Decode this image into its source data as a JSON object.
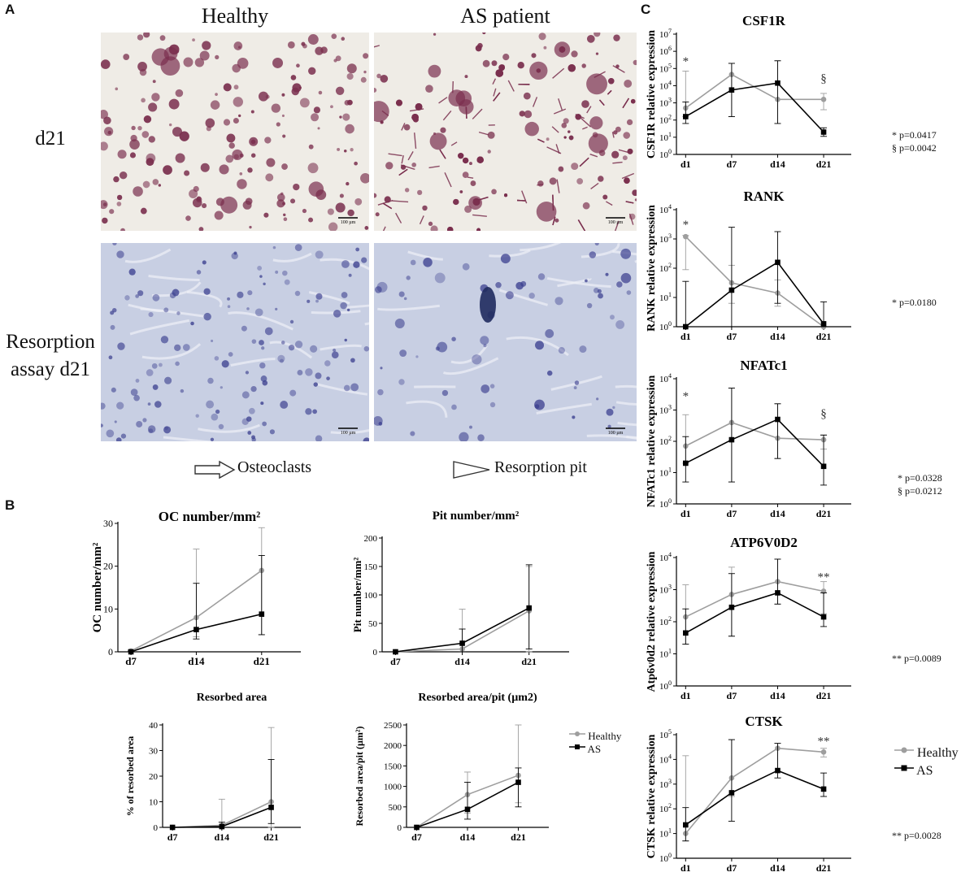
{
  "panels": {
    "a": "A",
    "b": "B",
    "c": "C"
  },
  "panel_a": {
    "col_healthy": "Healthy",
    "col_as": "AS patient",
    "row_d21": "d21",
    "row_resorption_line1": "Resorption",
    "row_resorption_line2": "assay d21",
    "scale_bar": "100 µm",
    "legend_osteoclasts": "Osteoclasts",
    "legend_pit": "Resorption pit",
    "photo_colors": {
      "trap_bg": "#efece6",
      "trap_stain": "#7a2f4e",
      "resorb_bg": "#c8cfe3",
      "resorb_stain": "#3b3f8f"
    }
  },
  "legend_b": {
    "healthy": "Healthy",
    "as": "AS"
  },
  "legend_c": {
    "healthy": "Healthy",
    "as": "AS"
  },
  "colors": {
    "healthy": "#9e9e9e",
    "as": "#000000"
  },
  "significance": {
    "csf1r": [
      "* p=0.0417",
      "§ p=0.0042"
    ],
    "rank": [
      "* p=0.0180"
    ],
    "nfatc1": [
      "* p=0.0328",
      "§ p=0.0212"
    ],
    "atp6v0d2": [
      "** p=0.0089"
    ],
    "ctsk": [
      "** p=0.0028"
    ]
  },
  "chart_data": [
    {
      "id": "oc",
      "type": "line",
      "title": "OC number/mm²",
      "ylabel": "OC number/mm²",
      "x": [
        "d7",
        "d14",
        "d21"
      ],
      "ylim": [
        0,
        30
      ],
      "yticks": [
        0,
        10,
        20,
        30
      ],
      "log": false,
      "series": [
        {
          "name": "Healthy",
          "values": [
            0.2,
            8,
            19
          ],
          "err_low": [
            0,
            3.5,
            4
          ],
          "err_high": [
            0.5,
            24,
            29
          ]
        },
        {
          "name": "AS",
          "values": [
            0,
            5.2,
            8.8
          ],
          "err_low": [
            0,
            3,
            4
          ],
          "err_high": [
            0.2,
            16,
            22.5
          ]
        }
      ]
    },
    {
      "id": "pit",
      "type": "line",
      "title": "Pit number/mm²",
      "ylabel": "Pit number/mm²",
      "x": [
        "d7",
        "d14",
        "d21"
      ],
      "ylim": [
        0,
        200
      ],
      "yticks": [
        0,
        50,
        100,
        150,
        200
      ],
      "log": false,
      "series": [
        {
          "name": "Healthy",
          "values": [
            0,
            5,
            72
          ],
          "err_low": [
            0,
            0,
            0
          ],
          "err_high": [
            0,
            75,
            150
          ]
        },
        {
          "name": "AS",
          "values": [
            0,
            15,
            77
          ],
          "err_low": [
            0,
            0,
            5
          ],
          "err_high": [
            0,
            40,
            153
          ]
        }
      ]
    },
    {
      "id": "area",
      "type": "line",
      "title": "Resorbed area",
      "ylabel": "% of resorbed area",
      "x": [
        "d7",
        "d14",
        "d21"
      ],
      "ylim": [
        0,
        40
      ],
      "yticks": [
        0,
        10,
        20,
        30,
        40
      ],
      "log": false,
      "series": [
        {
          "name": "Healthy",
          "values": [
            0,
            0.8,
            10
          ],
          "err_low": [
            0,
            0,
            0
          ],
          "err_high": [
            0,
            11,
            39
          ]
        },
        {
          "name": "AS",
          "values": [
            0,
            0.3,
            7.8
          ],
          "err_low": [
            0,
            0,
            1.5
          ],
          "err_high": [
            0,
            2,
            26.5
          ]
        }
      ]
    },
    {
      "id": "areapit",
      "type": "line",
      "title": "Resorbed area/pit (µm2)",
      "ylabel": "Resorbed area/pit (µm²)",
      "x": [
        "d7",
        "d14",
        "d21"
      ],
      "ylim": [
        0,
        2500
      ],
      "yticks": [
        0,
        500,
        1000,
        1500,
        2000,
        2500
      ],
      "log": false,
      "series": [
        {
          "name": "Healthy",
          "values": [
            0,
            800,
            1270
          ],
          "err_low": [
            0,
            350,
            600
          ],
          "err_high": [
            0,
            1350,
            2500
          ]
        },
        {
          "name": "AS",
          "values": [
            0,
            440,
            1100
          ],
          "err_low": [
            0,
            200,
            500
          ],
          "err_high": [
            0,
            1100,
            1450
          ]
        }
      ]
    },
    {
      "id": "csf1r",
      "type": "line",
      "title": "CSF1R",
      "ylabel": "CSF1R relative expression",
      "x": [
        "d1",
        "d7",
        "d14",
        "d21"
      ],
      "ylim": [
        0,
        7
      ],
      "yticks": [
        0,
        1,
        2,
        3,
        4,
        5,
        6,
        7
      ],
      "log": true,
      "marks": [
        {
          "label": "*",
          "x": "d1",
          "at": 5.45
        },
        {
          "label": "§",
          "x": "d21",
          "at": 4.45
        }
      ],
      "series": [
        {
          "name": "Healthy",
          "values": [
            2.7,
            4.65,
            3.2,
            3.2
          ],
          "err_low": [
            2.2,
            2.2,
            1.8,
            2.6
          ],
          "err_high": [
            4.85,
            5.3,
            5.45,
            3.55
          ]
        },
        {
          "name": "AS",
          "values": [
            2.2,
            3.75,
            4.15,
            1.3
          ],
          "err_low": [
            1.8,
            2.2,
            1.8,
            1.05
          ],
          "err_high": [
            3.05,
            5.3,
            5.45,
            1.55
          ]
        }
      ]
    },
    {
      "id": "rank",
      "type": "line",
      "title": "RANK",
      "ylabel": "RANK relative expression",
      "x": [
        "d1",
        "d7",
        "d14",
        "d21"
      ],
      "ylim": [
        0,
        4
      ],
      "yticks": [
        0,
        1,
        2,
        3,
        4
      ],
      "log": true,
      "marks": [
        {
          "label": "*",
          "x": "d1",
          "at": 3.5
        }
      ],
      "series": [
        {
          "name": "Healthy",
          "values": [
            3.08,
            1.5,
            1.15,
            0
          ],
          "err_low": [
            1.95,
            0.8,
            0.7,
            0
          ],
          "err_high": [
            3.12,
            2.1,
            1.6,
            0
          ]
        },
        {
          "name": "AS",
          "values": [
            0,
            1.25,
            2.2,
            0.1
          ],
          "err_low": [
            0,
            0,
            0.8,
            0
          ],
          "err_high": [
            1.55,
            3.4,
            3.25,
            0.85
          ]
        }
      ]
    },
    {
      "id": "nfatc1",
      "type": "line",
      "title": "NFATc1",
      "ylabel": "NFATc1 relative expression",
      "x": [
        "d1",
        "d7",
        "d14",
        "d21"
      ],
      "ylim": [
        0,
        4
      ],
      "yticks": [
        0,
        1,
        2,
        3,
        4
      ],
      "log": true,
      "marks": [
        {
          "label": "*",
          "x": "d1",
          "at": 3.45
        },
        {
          "label": "§",
          "x": "d21",
          "at": 2.9
        }
      ],
      "series": [
        {
          "name": "Healthy",
          "values": [
            1.85,
            2.6,
            2.1,
            2.05
          ],
          "err_low": [
            1.3,
            0.7,
            1.45,
            1.75
          ],
          "err_high": [
            2.85,
            3.7,
            3.2,
            2.2
          ]
        },
        {
          "name": "AS",
          "values": [
            1.3,
            2.05,
            2.7,
            1.2
          ],
          "err_low": [
            0.7,
            0.7,
            1.45,
            0.6
          ],
          "err_high": [
            2.15,
            3.7,
            3.2,
            2.2
          ]
        }
      ]
    },
    {
      "id": "atp6v0d2",
      "type": "line",
      "title": "ATP6V0D2",
      "ylabel": "Atp6v0d2 relative expression",
      "x": [
        "d1",
        "d7",
        "d14",
        "d21"
      ],
      "ylim": [
        0,
        4
      ],
      "yticks": [
        0,
        1,
        2,
        3,
        4
      ],
      "log": true,
      "marks": [
        {
          "label": "**",
          "x": "d21",
          "at": 3.4
        }
      ],
      "series": [
        {
          "name": "Healthy",
          "values": [
            2.15,
            2.85,
            3.25,
            2.95
          ],
          "err_low": [
            1.3,
            1.55,
            2.55,
            2.25
          ],
          "err_high": [
            3.15,
            3.7,
            3.95,
            3.25
          ]
        },
        {
          "name": "AS",
          "values": [
            1.65,
            2.45,
            2.9,
            2.15
          ],
          "err_low": [
            1.3,
            1.55,
            2.55,
            1.85
          ],
          "err_high": [
            2.4,
            3.5,
            3.95,
            2.9
          ]
        }
      ]
    },
    {
      "id": "ctsk",
      "type": "line",
      "title": "CTSK",
      "ylabel": "CTSK relative expression",
      "x": [
        "d1",
        "d7",
        "d14",
        "d21"
      ],
      "ylim": [
        0,
        5
      ],
      "yticks": [
        0,
        1,
        2,
        3,
        4,
        5
      ],
      "log": true,
      "marks": [
        {
          "label": "**",
          "x": "d21",
          "at": 4.75
        }
      ],
      "series": [
        {
          "name": "Healthy",
          "values": [
            1,
            3.25,
            4.45,
            4.3
          ],
          "err_low": [
            0.7,
            2.5,
            3.5,
            4.1
          ],
          "err_high": [
            4.15,
            4.8,
            4.65,
            4.45
          ]
        },
        {
          "name": "AS",
          "values": [
            1.35,
            2.65,
            3.55,
            2.8
          ],
          "err_low": [
            0.7,
            1.5,
            3.25,
            2.5
          ],
          "err_high": [
            2.05,
            4.8,
            4.65,
            3.45
          ]
        }
      ]
    }
  ]
}
